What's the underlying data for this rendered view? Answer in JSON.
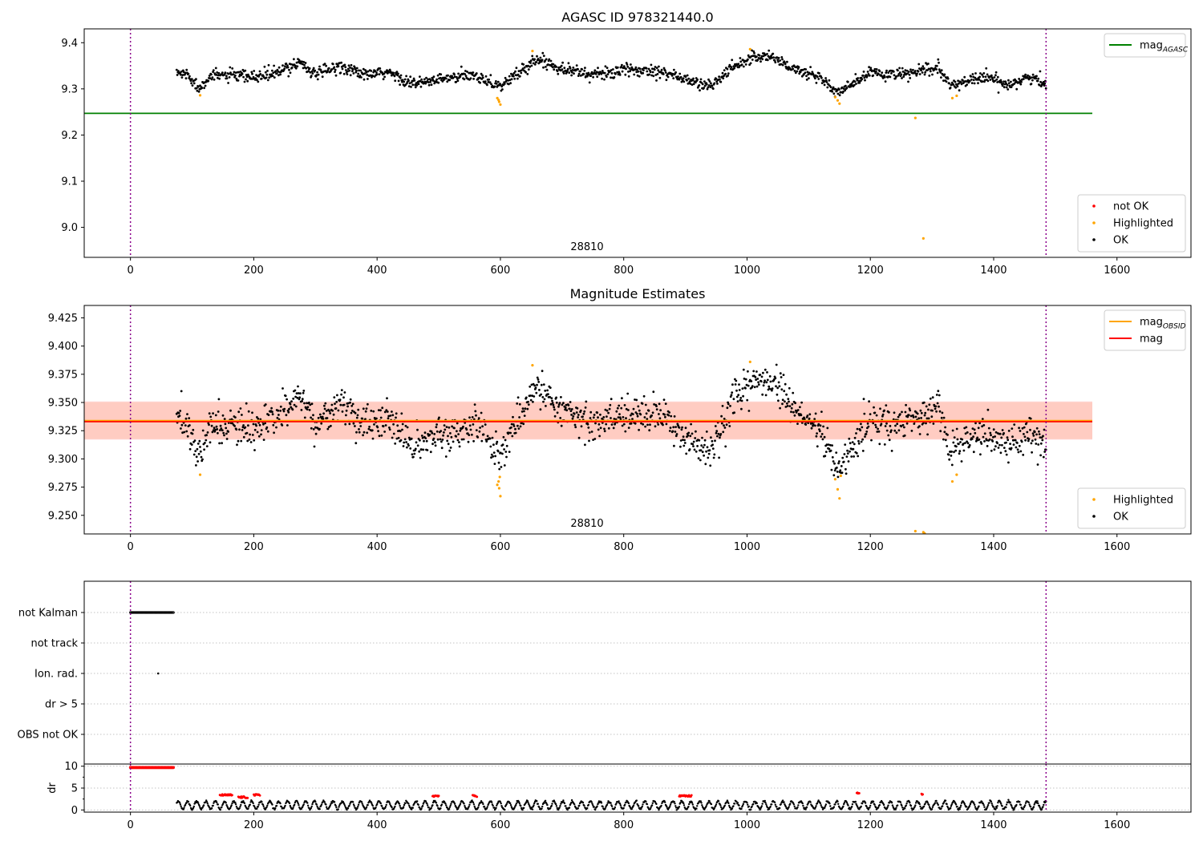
{
  "chart_data": [
    {
      "id": "panel1",
      "type": "scatter",
      "title": "AGASC ID 978321440.0",
      "annotation": "28810",
      "xlim": [
        -75,
        1720
      ],
      "ylim": [
        8.935,
        9.43
      ],
      "xticks": [
        0,
        200,
        400,
        600,
        800,
        1000,
        1200,
        1400,
        1600
      ],
      "yticks": [
        9.0,
        9.1,
        9.2,
        9.3,
        9.4
      ],
      "ytick_labels": [
        "9.0",
        "9.1",
        "9.2",
        "9.3",
        "9.4"
      ],
      "vlines": [
        0,
        1485
      ],
      "hlines": [
        {
          "name": "mag_AGASC",
          "y": 9.247,
          "x": [
            -75,
            1560
          ],
          "color": "#008000"
        }
      ],
      "trend": [
        [
          75,
          9.335
        ],
        [
          95,
          9.33
        ],
        [
          110,
          9.3
        ],
        [
          125,
          9.325
        ],
        [
          150,
          9.33
        ],
        [
          200,
          9.325
        ],
        [
          240,
          9.335
        ],
        [
          275,
          9.36
        ],
        [
          300,
          9.33
        ],
        [
          340,
          9.35
        ],
        [
          380,
          9.33
        ],
        [
          420,
          9.335
        ],
        [
          460,
          9.31
        ],
        [
          500,
          9.32
        ],
        [
          560,
          9.33
        ],
        [
          600,
          9.305
        ],
        [
          640,
          9.345
        ],
        [
          660,
          9.365
        ],
        [
          700,
          9.345
        ],
        [
          750,
          9.33
        ],
        [
          800,
          9.34
        ],
        [
          860,
          9.34
        ],
        [
          900,
          9.32
        ],
        [
          940,
          9.305
        ],
        [
          980,
          9.35
        ],
        [
          1010,
          9.37
        ],
        [
          1040,
          9.37
        ],
        [
          1080,
          9.34
        ],
        [
          1120,
          9.325
        ],
        [
          1145,
          9.29
        ],
        [
          1165,
          9.305
        ],
        [
          1200,
          9.335
        ],
        [
          1250,
          9.33
        ],
        [
          1290,
          9.34
        ],
        [
          1310,
          9.345
        ],
        [
          1330,
          9.305
        ],
        [
          1360,
          9.32
        ],
        [
          1390,
          9.325
        ],
        [
          1420,
          9.31
        ],
        [
          1460,
          9.325
        ],
        [
          1485,
          9.31
        ]
      ],
      "ok_scatter": 0.012,
      "highlighted": [
        [
          113,
          9.286
        ],
        [
          595,
          9.28
        ],
        [
          597,
          9.276
        ],
        [
          598,
          9.272
        ],
        [
          600,
          9.266
        ],
        [
          652,
          9.382
        ],
        [
          1005,
          9.386
        ],
        [
          1143,
          9.282
        ],
        [
          1147,
          9.275
        ],
        [
          1150,
          9.268
        ],
        [
          1273,
          9.237
        ],
        [
          1286,
          8.976
        ],
        [
          1333,
          9.28
        ],
        [
          1340,
          9.285
        ]
      ],
      "legends": [
        {
          "id": "leg1a",
          "corner": "top-right",
          "entries": [
            {
              "type": "line",
              "color": "#008000",
              "label": "mag",
              "sub": "AGASC"
            }
          ]
        },
        {
          "id": "leg1b",
          "corner": "bottom-right",
          "entries": [
            {
              "type": "dot",
              "color": "#ff0000",
              "label": "not OK"
            },
            {
              "type": "dot",
              "color": "#ffa500",
              "label": "Highlighted"
            },
            {
              "type": "dot",
              "color": "#000000",
              "label": "OK"
            }
          ]
        }
      ]
    },
    {
      "id": "panel2",
      "type": "scatter",
      "title": "Magnitude Estimates",
      "annotation": "28810",
      "xlim": [
        -75,
        1720
      ],
      "ylim": [
        9.2335,
        9.436
      ],
      "xticks": [
        0,
        200,
        400,
        600,
        800,
        1000,
        1200,
        1400,
        1600
      ],
      "yticks": [
        9.25,
        9.275,
        9.3,
        9.325,
        9.35,
        9.375,
        9.4,
        9.425
      ],
      "ytick_labels": [
        "9.250",
        "9.275",
        "9.300",
        "9.325",
        "9.350",
        "9.375",
        "9.400",
        "9.425"
      ],
      "vlines": [
        0,
        1485
      ],
      "bands": [
        {
          "y": [
            9.317,
            9.351
          ],
          "color": "#ffc0cb",
          "opacity": 0.45
        },
        {
          "y": [
            9.3175,
            9.3505
          ],
          "color": "#ffa07a",
          "opacity": 0.35
        }
      ],
      "hlines": [
        {
          "name": "mag_OBSID",
          "y": 9.3335,
          "x": [
            -75,
            1560
          ],
          "color": "#ffa500",
          "width": 3
        },
        {
          "name": "mag",
          "y": 9.333,
          "x": [
            -75,
            1560
          ],
          "color": "#ff0000",
          "width": 1.6
        }
      ],
      "ok_scatter": 0.014,
      "highlighted": [
        [
          113,
          9.286
        ],
        [
          595,
          9.277
        ],
        [
          597,
          9.28
        ],
        [
          598,
          9.274
        ],
        [
          600,
          9.267
        ],
        [
          599,
          9.284
        ],
        [
          652,
          9.383
        ],
        [
          1005,
          9.386
        ],
        [
          1143,
          9.282
        ],
        [
          1147,
          9.273
        ],
        [
          1150,
          9.265
        ],
        [
          1152,
          9.285
        ],
        [
          1273,
          9.236
        ],
        [
          1286,
          9.235
        ],
        [
          1288,
          9.234
        ],
        [
          1333,
          9.28
        ],
        [
          1340,
          9.286
        ]
      ],
      "legends": [
        {
          "id": "leg2a",
          "corner": "top-right",
          "entries": [
            {
              "type": "line",
              "color": "#ffa500",
              "label": "mag",
              "sub": "OBSID"
            },
            {
              "type": "line",
              "color": "#ff0000",
              "label": "mag"
            }
          ]
        },
        {
          "id": "leg2b",
          "corner": "bottom-right",
          "entries": [
            {
              "type": "dot",
              "color": "#ffa500",
              "label": "Highlighted"
            },
            {
              "type": "dot",
              "color": "#000000",
              "label": "OK"
            }
          ]
        }
      ]
    },
    {
      "id": "panel3",
      "type": "scatter",
      "xlim": [
        -75,
        1720
      ],
      "categories": [
        "not Kalman",
        "not track",
        "Ion. rad.",
        "dr > 5",
        "OBS not OK"
      ],
      "vlines": [
        0,
        1485
      ],
      "not_kalman_range": [
        0,
        70
      ],
      "ion_rad_points": [
        45
      ]
    },
    {
      "id": "panel4",
      "type": "scatter",
      "ylabel": "dr",
      "xlim": [
        -75,
        1720
      ],
      "ylim": [
        -0.5,
        10.5
      ],
      "yticks": [
        0,
        5,
        10
      ],
      "ytick_labels": [
        "0",
        "5",
        "10"
      ],
      "xticks": [
        0,
        200,
        400,
        600,
        800,
        1000,
        1200,
        1400,
        1600
      ],
      "vlines": [
        0,
        1485
      ],
      "red_high_range": [
        0,
        70
      ],
      "red_high_value": 9.7,
      "red_segments": [
        [
          145,
          165,
          3.4
        ],
        [
          175,
          190,
          2.9
        ],
        [
          200,
          210,
          3.4
        ],
        [
          490,
          500,
          3.2
        ],
        [
          555,
          562,
          3.2
        ],
        [
          890,
          910,
          3.2
        ],
        [
          1178,
          1182,
          3.8
        ],
        [
          1283,
          1285,
          3.6
        ]
      ]
    }
  ],
  "xtick_labels": [
    "0",
    "200",
    "400",
    "600",
    "800",
    "1000",
    "1200",
    "1400",
    "1600"
  ]
}
